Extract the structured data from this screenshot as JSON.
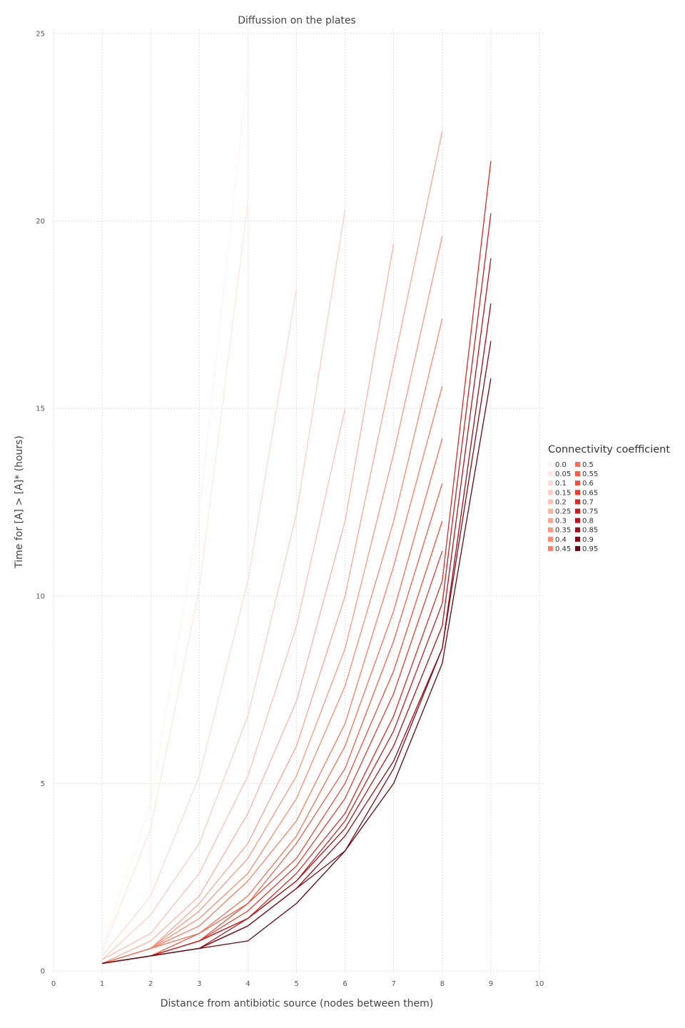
{
  "chart_data": {
    "type": "line",
    "title": "Diffussion on the plates",
    "xlabel": "Distance from antibiotic source (nodes between them)",
    "ylabel": "Time for [A] > [A]* (hours)",
    "xlim": [
      0,
      10
    ],
    "ylim": [
      0,
      25
    ],
    "x_ticks": [
      "0",
      "1",
      "2",
      "3",
      "4",
      "5",
      "6",
      "7",
      "8",
      "9",
      "10"
    ],
    "y_ticks": [
      "0",
      "5",
      "10",
      "15",
      "20",
      "25"
    ],
    "grid": true,
    "legend": {
      "title": "Connectivity coefficient",
      "placement": "right"
    },
    "series": [
      {
        "name": "0.0",
        "color": "#fff4f2",
        "x": [
          1,
          2,
          3,
          4
        ],
        "y": [
          0.6,
          4.5,
          12.2,
          24.0
        ]
      },
      {
        "name": "0.05",
        "color": "#fee8e4",
        "x": [
          1,
          2,
          3,
          4
        ],
        "y": [
          0.5,
          3.8,
          10.2,
          20.5
        ]
      },
      {
        "name": "0.1",
        "color": "#fedbd4",
        "x": [
          1,
          2,
          3,
          4,
          5
        ],
        "y": [
          0.4,
          2.0,
          5.2,
          10.4,
          18.2
        ]
      },
      {
        "name": "0.15",
        "color": "#fdcfc4",
        "x": [
          1,
          2,
          3,
          4,
          5,
          6
        ],
        "y": [
          0.3,
          1.5,
          3.4,
          6.8,
          12.2,
          20.3
        ]
      },
      {
        "name": "0.2",
        "color": "#fcc1b2",
        "x": [
          1,
          2,
          3,
          4,
          5,
          6
        ],
        "y": [
          0.3,
          1.0,
          2.6,
          5.2,
          9.2,
          15.0
        ]
      },
      {
        "name": "0.25",
        "color": "#fcb4a2",
        "x": [
          1,
          2,
          3,
          4,
          5,
          6,
          7
        ],
        "y": [
          0.2,
          0.8,
          2.0,
          4.2,
          7.2,
          12.0,
          19.4
        ]
      },
      {
        "name": "0.3",
        "color": "#fca691",
        "x": [
          1,
          2,
          3,
          4,
          5,
          6,
          7,
          8
        ],
        "y": [
          0.2,
          0.6,
          1.8,
          3.4,
          6.0,
          10.0,
          16.2,
          22.4
        ]
      },
      {
        "name": "0.35",
        "color": "#fb9981",
        "x": [
          1,
          2,
          3,
          4,
          5,
          6,
          7,
          8
        ],
        "y": [
          0.2,
          0.6,
          1.6,
          3.0,
          5.2,
          8.6,
          13.8,
          19.6
        ]
      },
      {
        "name": "0.4",
        "color": "#fb8c72",
        "x": [
          1,
          2,
          3,
          4,
          5,
          6,
          7,
          8
        ],
        "y": [
          0.2,
          0.6,
          1.4,
          2.6,
          4.6,
          7.6,
          12.0,
          17.4
        ]
      },
      {
        "name": "0.45",
        "color": "#f87e65",
        "x": [
          1,
          2,
          3,
          4,
          5,
          6,
          7,
          8
        ],
        "y": [
          0.2,
          0.6,
          1.2,
          2.4,
          4.0,
          6.6,
          10.8,
          15.6
        ]
      },
      {
        "name": "0.5",
        "color": "#f47058",
        "x": [
          1,
          2,
          3,
          4,
          5,
          6,
          7,
          8
        ],
        "y": [
          0.2,
          0.6,
          1.0,
          2.0,
          3.6,
          6.0,
          9.6,
          14.2
        ]
      },
      {
        "name": "0.55",
        "color": "#ef614c",
        "x": [
          1,
          2,
          3,
          4,
          5,
          6,
          7,
          8
        ],
        "y": [
          0.2,
          0.4,
          1.0,
          1.8,
          3.4,
          5.4,
          8.8,
          13.0
        ]
      },
      {
        "name": "0.6",
        "color": "#e9503f",
        "x": [
          1,
          2,
          3,
          4,
          5,
          6,
          7,
          8
        ],
        "y": [
          0.2,
          0.4,
          0.8,
          1.8,
          3.0,
          5.0,
          8.0,
          12.0
        ]
      },
      {
        "name": "0.65",
        "color": "#e03f34",
        "x": [
          1,
          2,
          3,
          4,
          5,
          6,
          7,
          8
        ],
        "y": [
          0.2,
          0.4,
          0.8,
          1.6,
          2.8,
          4.6,
          7.4,
          11.2
        ]
      },
      {
        "name": "0.7",
        "color": "#d52e2a",
        "x": [
          1,
          2,
          3,
          4,
          5,
          6,
          7,
          8,
          9
        ],
        "y": [
          0.2,
          0.4,
          0.8,
          1.4,
          2.6,
          4.2,
          6.8,
          10.4,
          21.6
        ]
      },
      {
        "name": "0.75",
        "color": "#c22124",
        "x": [
          1,
          2,
          3,
          4,
          5,
          6,
          7,
          8,
          9
        ],
        "y": [
          0.2,
          0.4,
          0.8,
          1.4,
          2.4,
          4.0,
          6.4,
          9.8,
          20.2
        ]
      },
      {
        "name": "0.8",
        "color": "#b0151e",
        "x": [
          1,
          2,
          3,
          4,
          5,
          6,
          7,
          8,
          9
        ],
        "y": [
          0.2,
          0.4,
          0.6,
          1.4,
          2.4,
          3.8,
          6.0,
          9.2,
          19.0
        ]
      },
      {
        "name": "0.85",
        "color": "#990e19",
        "x": [
          1,
          2,
          3,
          4,
          5,
          6,
          7,
          8,
          9
        ],
        "y": [
          0.2,
          0.4,
          0.6,
          1.2,
          2.2,
          3.6,
          5.6,
          8.6,
          17.8
        ]
      },
      {
        "name": "0.9",
        "color": "#810a15",
        "x": [
          1,
          2,
          3,
          4,
          5,
          6,
          7,
          8,
          9
        ],
        "y": [
          0.2,
          0.4,
          0.6,
          1.2,
          2.2,
          3.2,
          5.4,
          8.6,
          16.8
        ]
      },
      {
        "name": "0.95",
        "color": "#670710",
        "x": [
          1,
          2,
          3,
          4,
          5,
          6,
          7,
          8,
          9
        ],
        "y": [
          0.2,
          0.4,
          0.6,
          0.8,
          1.8,
          3.2,
          5.0,
          8.2,
          15.8
        ]
      }
    ]
  }
}
